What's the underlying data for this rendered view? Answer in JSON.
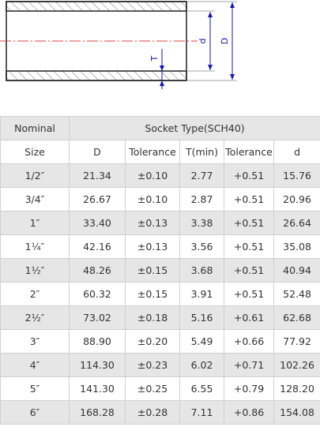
{
  "diagram": {
    "label_d": "d",
    "label_D": "D",
    "label_T": "T"
  },
  "table": {
    "header1": {
      "nominal": "Nominal",
      "group": "Socket Type(SCH40)"
    },
    "header2": [
      "Size",
      "D",
      "Tolerance",
      "T(min)",
      "Tolerance",
      "d"
    ],
    "rows": [
      [
        "1/2″",
        "21.34",
        "±0.10",
        "2.77",
        "+0.51",
        "15.76"
      ],
      [
        "3/4″",
        "26.67",
        "±0.10",
        "2.87",
        "+0.51",
        "20.96"
      ],
      [
        "1″",
        "33.40",
        "±0.13",
        "3.38",
        "+0.51",
        "26.64"
      ],
      [
        "1¼″",
        "42.16",
        "±0.13",
        "3.56",
        "+0.51",
        "35.08"
      ],
      [
        "1½″",
        "48.26",
        "±0.15",
        "3.68",
        "+0.51",
        "40.94"
      ],
      [
        "2″",
        "60.32",
        "±0.15",
        "3.91",
        "+0.51",
        "52.48"
      ],
      [
        "2½″",
        "73.02",
        "±0.18",
        "5.16",
        "+0.61",
        "62.68"
      ],
      [
        "3″",
        "88.90",
        "±0.20",
        "5.49",
        "+0.66",
        "77.92"
      ],
      [
        "4″",
        "114.30",
        "±0.23",
        "6.02",
        "+0.71",
        "102.26"
      ],
      [
        "5″",
        "141.30",
        "±0.25",
        "6.55",
        "+0.79",
        "128.20"
      ],
      [
        "6″",
        "168.28",
        "±0.28",
        "7.11",
        "+0.86",
        "154.08"
      ]
    ]
  }
}
